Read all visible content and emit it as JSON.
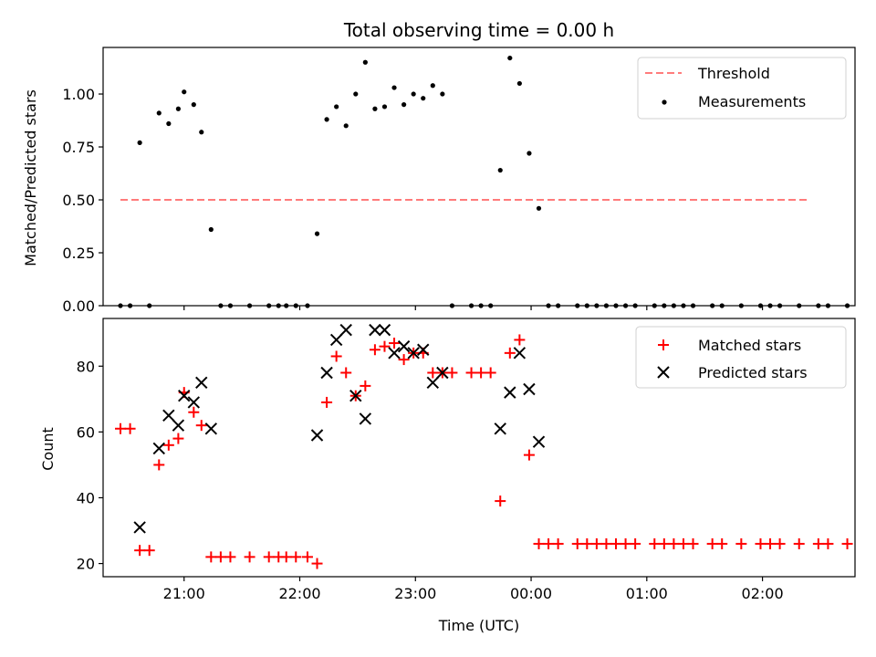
{
  "chart_data": [
    {
      "type": "scatter",
      "title": "Total observing time = 0.00 h",
      "ylabel": "Matched/Predicted stars",
      "xlabel": "",
      "ylim": [
        0,
        1.22
      ],
      "xlim": [
        "20:18",
        "02:48"
      ],
      "yticks": [
        "0.00",
        "0.25",
        "0.50",
        "0.75",
        "1.00"
      ],
      "legend_position": "top-right",
      "threshold": {
        "name": "Threshold",
        "value": 0.5,
        "x_range": [
          "20:27",
          "02:24"
        ],
        "color": "#ff7b7b",
        "style": "dashed"
      },
      "series": [
        {
          "name": "Measurements",
          "color": "#000000",
          "marker": "dot",
          "points": [
            [
              "20:27",
              0.0
            ],
            [
              "20:32",
              0.0
            ],
            [
              "20:37",
              0.77
            ],
            [
              "20:42",
              0.0
            ],
            [
              "20:47",
              0.91
            ],
            [
              "20:52",
              0.86
            ],
            [
              "20:57",
              0.93
            ],
            [
              "21:00",
              1.01
            ],
            [
              "21:05",
              0.95
            ],
            [
              "21:09",
              0.82
            ],
            [
              "21:14",
              0.36
            ],
            [
              "21:19",
              0.0
            ],
            [
              "21:24",
              0.0
            ],
            [
              "21:34",
              0.0
            ],
            [
              "21:44",
              0.0
            ],
            [
              "21:49",
              0.0
            ],
            [
              "21:53",
              0.0
            ],
            [
              "21:58",
              0.0
            ],
            [
              "22:04",
              0.0
            ],
            [
              "22:09",
              0.34
            ],
            [
              "22:14",
              0.88
            ],
            [
              "22:19",
              0.94
            ],
            [
              "22:24",
              0.85
            ],
            [
              "22:29",
              1.0
            ],
            [
              "22:34",
              1.15
            ],
            [
              "22:39",
              0.93
            ],
            [
              "22:44",
              0.94
            ],
            [
              "22:49",
              1.03
            ],
            [
              "22:54",
              0.95
            ],
            [
              "22:59",
              1.0
            ],
            [
              "23:04",
              0.98
            ],
            [
              "23:09",
              1.04
            ],
            [
              "23:14",
              1.0
            ],
            [
              "23:19",
              0.0
            ],
            [
              "23:29",
              0.0
            ],
            [
              "23:34",
              0.0
            ],
            [
              "23:39",
              0.0
            ],
            [
              "23:44",
              0.64
            ],
            [
              "23:49",
              1.17
            ],
            [
              "23:54",
              1.05
            ],
            [
              "23:59",
              0.72
            ],
            [
              "00:04",
              0.46
            ],
            [
              "00:09",
              0.0
            ],
            [
              "00:14",
              0.0
            ],
            [
              "00:24",
              0.0
            ],
            [
              "00:29",
              0.0
            ],
            [
              "00:34",
              0.0
            ],
            [
              "00:39",
              0.0
            ],
            [
              "00:44",
              0.0
            ],
            [
              "00:49",
              0.0
            ],
            [
              "00:54",
              0.0
            ],
            [
              "01:04",
              0.0
            ],
            [
              "01:09",
              0.0
            ],
            [
              "01:14",
              0.0
            ],
            [
              "01:19",
              0.0
            ],
            [
              "01:24",
              0.0
            ],
            [
              "01:34",
              0.0
            ],
            [
              "01:39",
              0.0
            ],
            [
              "01:49",
              0.0
            ],
            [
              "01:59",
              0.0
            ],
            [
              "02:04",
              0.0
            ],
            [
              "02:09",
              0.0
            ],
            [
              "02:19",
              0.0
            ],
            [
              "02:29",
              0.0
            ],
            [
              "02:34",
              0.0
            ],
            [
              "02:44",
              0.0
            ]
          ]
        }
      ]
    },
    {
      "type": "scatter",
      "title": "",
      "ylabel": "Count",
      "xlabel": "Time (UTC)",
      "ylim": [
        16,
        94.5
      ],
      "xlim": [
        "20:18",
        "02:48"
      ],
      "yticks": [
        "20",
        "40",
        "60",
        "80"
      ],
      "xticks": [
        "21:00",
        "22:00",
        "23:00",
        "00:00",
        "01:00",
        "02:00"
      ],
      "legend_position": "top-right",
      "series": [
        {
          "name": "Matched stars",
          "color": "#ff0000",
          "marker": "plus",
          "points": [
            [
              "20:27",
              61
            ],
            [
              "20:32",
              61
            ],
            [
              "20:37",
              24
            ],
            [
              "20:42",
              24
            ],
            [
              "20:47",
              50
            ],
            [
              "20:52",
              56
            ],
            [
              "20:57",
              58
            ],
            [
              "21:00",
              72
            ],
            [
              "21:05",
              66
            ],
            [
              "21:09",
              62
            ],
            [
              "21:14",
              22
            ],
            [
              "21:19",
              22
            ],
            [
              "21:24",
              22
            ],
            [
              "21:34",
              22
            ],
            [
              "21:44",
              22
            ],
            [
              "21:49",
              22
            ],
            [
              "21:53",
              22
            ],
            [
              "21:58",
              22
            ],
            [
              "22:04",
              22
            ],
            [
              "22:09",
              20
            ],
            [
              "22:14",
              69
            ],
            [
              "22:19",
              83
            ],
            [
              "22:24",
              78
            ],
            [
              "22:29",
              71
            ],
            [
              "22:34",
              74
            ],
            [
              "22:39",
              85
            ],
            [
              "22:44",
              86
            ],
            [
              "22:49",
              87
            ],
            [
              "22:54",
              82
            ],
            [
              "22:59",
              84
            ],
            [
              "23:04",
              84
            ],
            [
              "23:09",
              78
            ],
            [
              "23:14",
              78
            ],
            [
              "23:19",
              78
            ],
            [
              "23:29",
              78
            ],
            [
              "23:34",
              78
            ],
            [
              "23:39",
              78
            ],
            [
              "23:44",
              39
            ],
            [
              "23:49",
              84
            ],
            [
              "23:54",
              88
            ],
            [
              "23:59",
              53
            ],
            [
              "00:04",
              26
            ],
            [
              "00:09",
              26
            ],
            [
              "00:14",
              26
            ],
            [
              "00:24",
              26
            ],
            [
              "00:29",
              26
            ],
            [
              "00:34",
              26
            ],
            [
              "00:39",
              26
            ],
            [
              "00:44",
              26
            ],
            [
              "00:49",
              26
            ],
            [
              "00:54",
              26
            ],
            [
              "01:04",
              26
            ],
            [
              "01:09",
              26
            ],
            [
              "01:14",
              26
            ],
            [
              "01:19",
              26
            ],
            [
              "01:24",
              26
            ],
            [
              "01:34",
              26
            ],
            [
              "01:39",
              26
            ],
            [
              "01:49",
              26
            ],
            [
              "01:59",
              26
            ],
            [
              "02:04",
              26
            ],
            [
              "02:09",
              26
            ],
            [
              "02:19",
              26
            ],
            [
              "02:29",
              26
            ],
            [
              "02:34",
              26
            ],
            [
              "02:44",
              26
            ]
          ]
        },
        {
          "name": "Predicted stars",
          "color": "#000000",
          "marker": "x",
          "points": [
            [
              "20:37",
              31
            ],
            [
              "20:47",
              55
            ],
            [
              "20:52",
              65
            ],
            [
              "20:57",
              62
            ],
            [
              "21:00",
              71
            ],
            [
              "21:05",
              69
            ],
            [
              "21:09",
              75
            ],
            [
              "21:14",
              61
            ],
            [
              "22:09",
              59
            ],
            [
              "22:14",
              78
            ],
            [
              "22:19",
              88
            ],
            [
              "22:24",
              91
            ],
            [
              "22:29",
              71
            ],
            [
              "22:34",
              64
            ],
            [
              "22:39",
              91
            ],
            [
              "22:44",
              91
            ],
            [
              "22:49",
              84
            ],
            [
              "22:54",
              86
            ],
            [
              "22:59",
              84
            ],
            [
              "23:04",
              85
            ],
            [
              "23:09",
              75
            ],
            [
              "23:14",
              78
            ],
            [
              "23:44",
              61
            ],
            [
              "23:49",
              72
            ],
            [
              "23:54",
              84
            ],
            [
              "23:59",
              73
            ],
            [
              "00:04",
              57
            ]
          ]
        }
      ]
    }
  ]
}
